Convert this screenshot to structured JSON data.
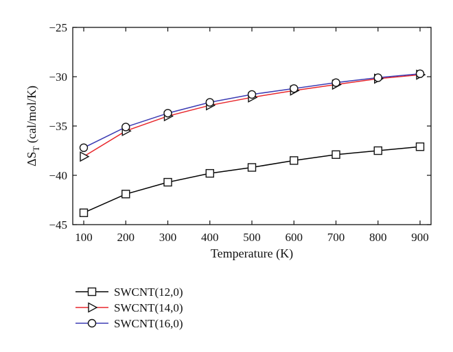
{
  "chart_data": {
    "type": "line",
    "xlabel": "Temperature (K)",
    "ylabel_main": "ΔS",
    "ylabel_sub": "T",
    "ylabel_rest": " (cal/mol/K)",
    "x": [
      100,
      200,
      300,
      400,
      500,
      600,
      700,
      800,
      900
    ],
    "xlim": [
      100,
      900
    ],
    "ylim": [
      -45,
      -25
    ],
    "xticks": [
      "100",
      "200",
      "300",
      "400",
      "500",
      "600",
      "700",
      "800",
      "900"
    ],
    "yticks": [
      "−25",
      "−30",
      "−35",
      "−40",
      "−45"
    ],
    "ytick_values": [
      -25,
      -30,
      -35,
      -40,
      -45
    ],
    "grid": false,
    "legend_position": "bottom-left, below plot",
    "series": [
      {
        "name": "SWCNT(12,0)",
        "color": "#000000",
        "marker": "square",
        "values": [
          -43.8,
          -41.9,
          -40.7,
          -39.8,
          -39.2,
          -38.5,
          -37.9,
          -37.5,
          -37.1
        ]
      },
      {
        "name": "SWCNT(14,0)",
        "color": "#e8262b",
        "marker": "triangle-right",
        "values": [
          -38.1,
          -35.5,
          -34.0,
          -32.9,
          -32.1,
          -31.4,
          -30.8,
          -30.2,
          -29.8
        ]
      },
      {
        "name": "SWCNT(16,0)",
        "color": "#3b3bb3",
        "marker": "circle",
        "values": [
          -37.2,
          -35.1,
          -33.7,
          -32.6,
          -31.8,
          -31.2,
          -30.6,
          -30.1,
          -29.7
        ]
      }
    ]
  }
}
